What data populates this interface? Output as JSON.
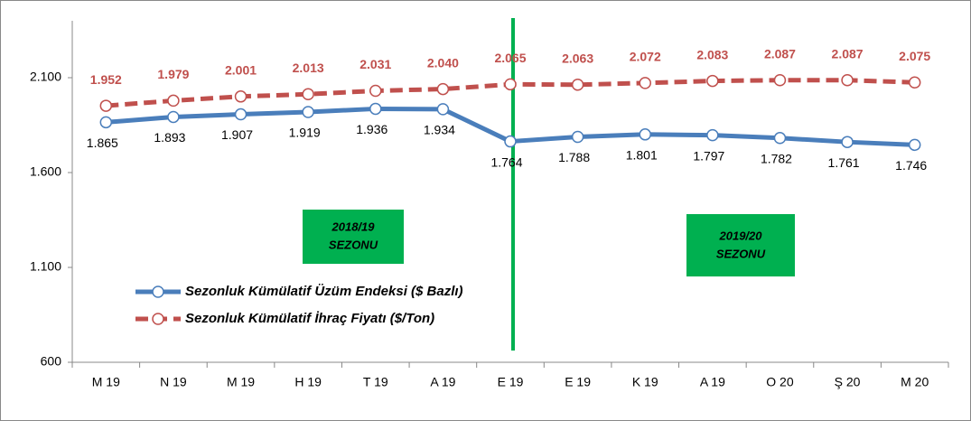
{
  "chart_data": {
    "type": "line",
    "categories": [
      "M 19",
      "N 19",
      "M 19",
      "H 19",
      "T 19",
      "A 19",
      "E 19",
      "E 19",
      "K 19",
      "A 19",
      "O 20",
      "Ş 20",
      "M 20"
    ],
    "series": [
      {
        "name": "Sezonluk Kümülatif Üzüm Endeksi ($ Bazlı)",
        "color": "#4a7ebb",
        "values": [
          1865,
          1893,
          1907,
          1919,
          1936,
          1934,
          1764,
          1788,
          1801,
          1797,
          1782,
          1761,
          1746
        ],
        "value_labels": [
          "1.865",
          "1.893",
          "1.907",
          "1.919",
          "1.936",
          "1.934",
          "1.764",
          "1.788",
          "1.801",
          "1.797",
          "1.782",
          "1.761",
          "1.746"
        ]
      },
      {
        "name": "Sezonluk Kümülatif İhraç Fiyatı ($/Ton)",
        "color": "#c0504d",
        "values": [
          1952,
          1979,
          2001,
          2013,
          2031,
          2040,
          2065,
          2063,
          2072,
          2083,
          2087,
          2087,
          2075
        ],
        "value_labels": [
          "1.952",
          "1.979",
          "2.001",
          "2.013",
          "2.031",
          "2.040",
          "2.065",
          "2.063",
          "2.072",
          "2.083",
          "2.087",
          "2.087",
          "2.075"
        ]
      }
    ],
    "ylim": [
      600,
      2400
    ],
    "yticks": [
      600,
      {
        "value": 1100,
        "label": "1.100"
      },
      {
        "value": 1600,
        "label": "1.600"
      },
      {
        "value": 2100,
        "label": "2.100"
      }
    ],
    "annotations": [
      [
        "2018/19",
        "SEZONU"
      ],
      [
        "2019/20",
        "SEZONU"
      ]
    ]
  }
}
